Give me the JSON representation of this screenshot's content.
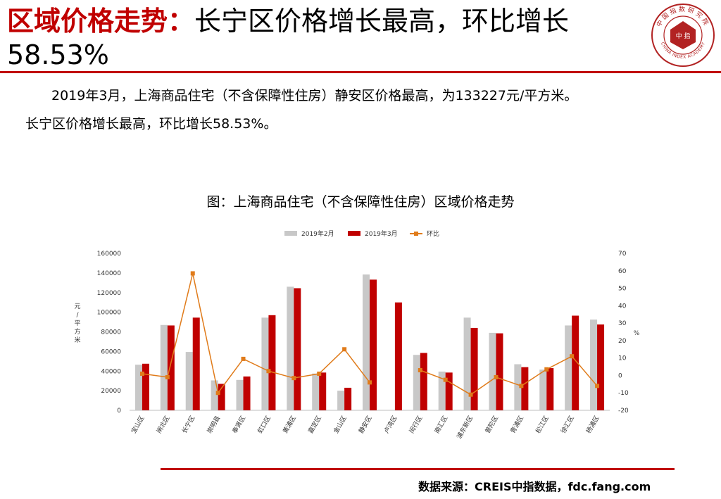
{
  "header": {
    "title_red": "区域价格走势：",
    "title_rest": "长宁区价格增长最高，环比增长58.53%"
  },
  "logo": {
    "top_text": "中国指数研究院",
    "center_text": "中 指",
    "bottom_text": "CHINA INDEX ACADEMY"
  },
  "body": {
    "line1": "2019年3月，上海商品住宅（不含保障性住房）静安区价格最高，为133227元/平方米。",
    "line2": "长宁区价格增长最高，环比增长58.53%。"
  },
  "figure_caption": "图：上海商品住宅（不含保障性住房）区域价格走势",
  "source": "数据来源：CREIS中指数据，fdc.fang.com",
  "colors": {
    "accent_red": "#c00000",
    "bar_feb": "#c8c8c8",
    "bar_mar": "#c00000",
    "line_mom": "#e07b1a"
  },
  "chart_data": {
    "type": "bar",
    "categories": [
      "宝山区",
      "闸北区",
      "长宁区",
      "崇明县",
      "奉贤区",
      "虹口区",
      "黄浦区",
      "嘉定区",
      "金山区",
      "静安区",
      "卢湾区",
      "闵行区",
      "南汇区",
      "浦东新区",
      "普陀区",
      "青浦区",
      "松江区",
      "徐汇区",
      "杨浦区"
    ],
    "series": [
      {
        "name": "2019年2月",
        "type": "bar",
        "axis": "left",
        "values": [
          46500,
          87000,
          59500,
          30500,
          31000,
          94500,
          126000,
          37500,
          20000,
          138500,
          null,
          56500,
          39500,
          94500,
          79000,
          47000,
          41500,
          86500,
          92500
        ]
      },
      {
        "name": "2019年3月",
        "type": "bar",
        "axis": "left",
        "values": [
          47500,
          86500,
          94500,
          27000,
          34500,
          97000,
          124500,
          38500,
          23000,
          133227,
          110000,
          58500,
          38500,
          84000,
          78500,
          44000,
          43000,
          96500,
          87500
        ]
      },
      {
        "name": "环比",
        "type": "line",
        "axis": "right",
        "values": [
          1,
          -1,
          58.53,
          -10,
          9.5,
          2.5,
          -1.5,
          1,
          15,
          -4,
          null,
          3,
          -2.5,
          -11,
          -1,
          -6,
          3.5,
          11,
          -6
        ]
      }
    ],
    "ylabel_left": "元/平方米",
    "ylabel_right": "%",
    "ylim_left": [
      0,
      160000
    ],
    "yticks_left": [
      "0",
      "20000",
      "40000",
      "60000",
      "80000",
      "100000",
      "120000",
      "140000",
      "160000"
    ],
    "ylim_right": [
      -20,
      70
    ],
    "yticks_right": [
      "-20",
      "-10",
      "0",
      "10",
      "20",
      "30",
      "40",
      "50",
      "60",
      "70"
    ],
    "legend_position": "top",
    "grid": false
  }
}
